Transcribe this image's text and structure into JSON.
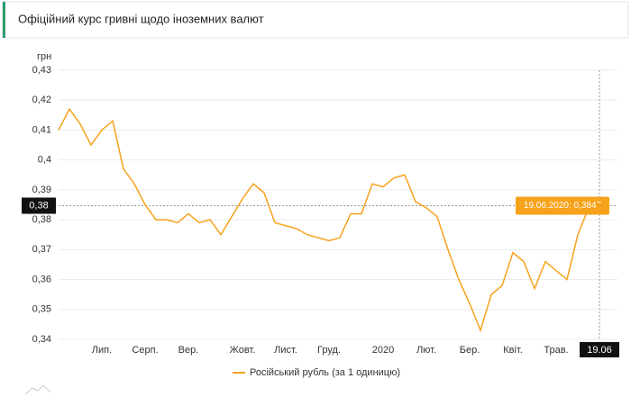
{
  "chart_data": {
    "type": "line",
    "title": "Офіційний курс гривні щодо іноземних валют",
    "y_label": "грн",
    "categories": [
      null,
      null,
      null,
      null,
      "Лип.",
      null,
      null,
      null,
      "Серп.",
      null,
      null,
      null,
      "Вер.",
      null,
      null,
      null,
      null,
      "Жовт.",
      null,
      null,
      null,
      "Лист.",
      null,
      null,
      null,
      "Груд.",
      null,
      null,
      null,
      null,
      "2020",
      null,
      null,
      null,
      "Лют.",
      null,
      null,
      null,
      "Бер.",
      null,
      null,
      null,
      "Квіт.",
      null,
      null,
      null,
      "Трав.",
      null,
      null,
      null,
      "19.06"
    ],
    "series": [
      {
        "name": "Російський рубль (за 1 одиницю)",
        "color": "#f7a21b",
        "values": [
          0.41,
          0.417,
          0.412,
          0.405,
          0.41,
          0.413,
          0.397,
          0.392,
          0.385,
          0.38,
          0.38,
          0.379,
          0.382,
          0.379,
          0.38,
          0.375,
          0.381,
          0.387,
          0.392,
          0.389,
          0.379,
          0.378,
          0.377,
          0.375,
          0.374,
          0.373,
          0.374,
          0.382,
          0.382,
          0.392,
          0.391,
          0.394,
          0.395,
          0.386,
          0.384,
          0.381,
          0.37,
          0.36,
          0.352,
          0.343,
          0.355,
          0.358,
          0.369,
          0.366,
          0.357,
          0.366,
          0.363,
          0.36,
          0.375,
          0.384,
          0.3847
        ]
      }
    ],
    "ylim": [
      0.34,
      0.43
    ],
    "yticks": [
      {
        "value": 0.34,
        "label": "0,34"
      },
      {
        "value": 0.35,
        "label": "0,35"
      },
      {
        "value": 0.36,
        "label": "0,36"
      },
      {
        "value": 0.37,
        "label": "0,37"
      },
      {
        "value": 0.38,
        "label": "0,38"
      },
      {
        "value": 0.39,
        "label": "0,39"
      },
      {
        "value": 0.4,
        "label": "0,4"
      },
      {
        "value": 0.41,
        "label": "0,41"
      },
      {
        "value": 0.42,
        "label": "0,42"
      },
      {
        "value": 0.43,
        "label": "0,43"
      }
    ],
    "grid": true,
    "crosshair": {
      "value": 0.3847,
      "label": "0,38"
    },
    "tooltip": {
      "value": 0.3847,
      "label": "19.06.2020: 0,3847"
    }
  }
}
